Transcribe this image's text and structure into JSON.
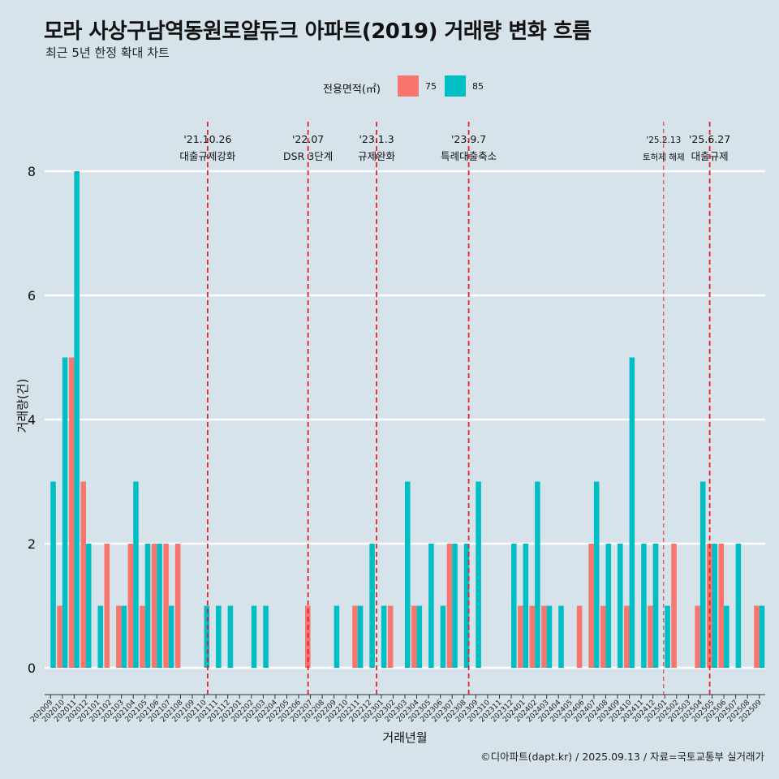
{
  "title": "모라 사상구남역동원로얄듀크 아파트(2019) 거래량 변화 흐름",
  "subtitle": "최근 5년 한정 확대 차트",
  "caption": "©디아파트(dapt.kr) / 2025.09.13 / 자료=국토교통부 실거래가",
  "legend": {
    "title": "전용면적(㎡)",
    "items": [
      {
        "label": "75",
        "color": "#f8766d"
      },
      {
        "label": "85",
        "color": "#00bfc4"
      }
    ]
  },
  "chart_data": {
    "type": "bar",
    "xlabel": "거래년월",
    "ylabel": "거래량(건)",
    "ylim": [
      0,
      8.5
    ],
    "yticks": [
      0,
      2,
      4,
      6,
      8
    ],
    "grid": true,
    "legend_position": "top",
    "categories": [
      "202009",
      "202010",
      "202011",
      "202012",
      "202101",
      "202102",
      "202103",
      "202104",
      "202105",
      "202106",
      "202107",
      "202108",
      "202109",
      "202110",
      "202111",
      "202112",
      "202201",
      "202202",
      "202203",
      "202204",
      "202205",
      "202206",
      "202207",
      "202208",
      "202209",
      "202210",
      "202211",
      "202212",
      "202301",
      "202302",
      "202303",
      "202304",
      "202305",
      "202306",
      "202307",
      "202308",
      "202309",
      "202310",
      "202311",
      "202312",
      "202401",
      "202402",
      "202403",
      "202404",
      "202405",
      "202406",
      "202407",
      "202408",
      "202409",
      "202410",
      "202411",
      "202412",
      "202501",
      "202502",
      "202503",
      "202504",
      "202505",
      "202506",
      "202507",
      "202508",
      "202509"
    ],
    "series": [
      {
        "name": "75",
        "color": "#f8766d",
        "values": [
          0,
          1,
          5,
          3,
          0,
          2,
          1,
          2,
          1,
          2,
          2,
          2,
          0,
          0,
          0,
          0,
          0,
          0,
          0,
          0,
          0,
          0,
          1,
          0,
          0,
          0,
          1,
          0,
          0,
          1,
          0,
          1,
          0,
          0,
          2,
          0,
          0,
          0,
          0,
          0,
          1,
          1,
          1,
          0,
          0,
          1,
          2,
          1,
          0,
          1,
          0,
          1,
          0,
          2,
          0,
          1,
          2,
          2,
          0,
          0,
          1
        ]
      },
      {
        "name": "85",
        "color": "#00bfc4",
        "values": [
          3,
          5,
          8,
          2,
          1,
          0,
          1,
          3,
          2,
          2,
          1,
          0,
          0,
          1,
          1,
          1,
          0,
          1,
          1,
          0,
          0,
          0,
          0,
          0,
          1,
          0,
          1,
          2,
          1,
          0,
          3,
          1,
          2,
          1,
          2,
          2,
          3,
          0,
          0,
          2,
          2,
          3,
          1,
          1,
          0,
          0,
          3,
          2,
          2,
          5,
          2,
          2,
          1,
          0,
          0,
          3,
          2,
          1,
          2,
          0,
          1
        ]
      }
    ],
    "events": [
      {
        "date": "'21.10.26",
        "label": "대출규제강화",
        "x_index": 13.8,
        "style": "dashed"
      },
      {
        "date": "'22.07",
        "label": "DSR 3단계",
        "x_index": 22.3,
        "style": "dashed"
      },
      {
        "date": "'23.1.3",
        "label": "규제완화",
        "x_index": 28.1,
        "style": "dashed"
      },
      {
        "date": "'23.9.7",
        "label": "특례대출축소",
        "x_index": 35.9,
        "style": "dashed"
      },
      {
        "date": "'25.2.13",
        "label": "토허제 해제",
        "x_index": 52.4,
        "style": "thin-dashed"
      },
      {
        "date": "'25.6.27",
        "label": "대출규제",
        "x_index": 56.3,
        "style": "dashed"
      }
    ]
  }
}
